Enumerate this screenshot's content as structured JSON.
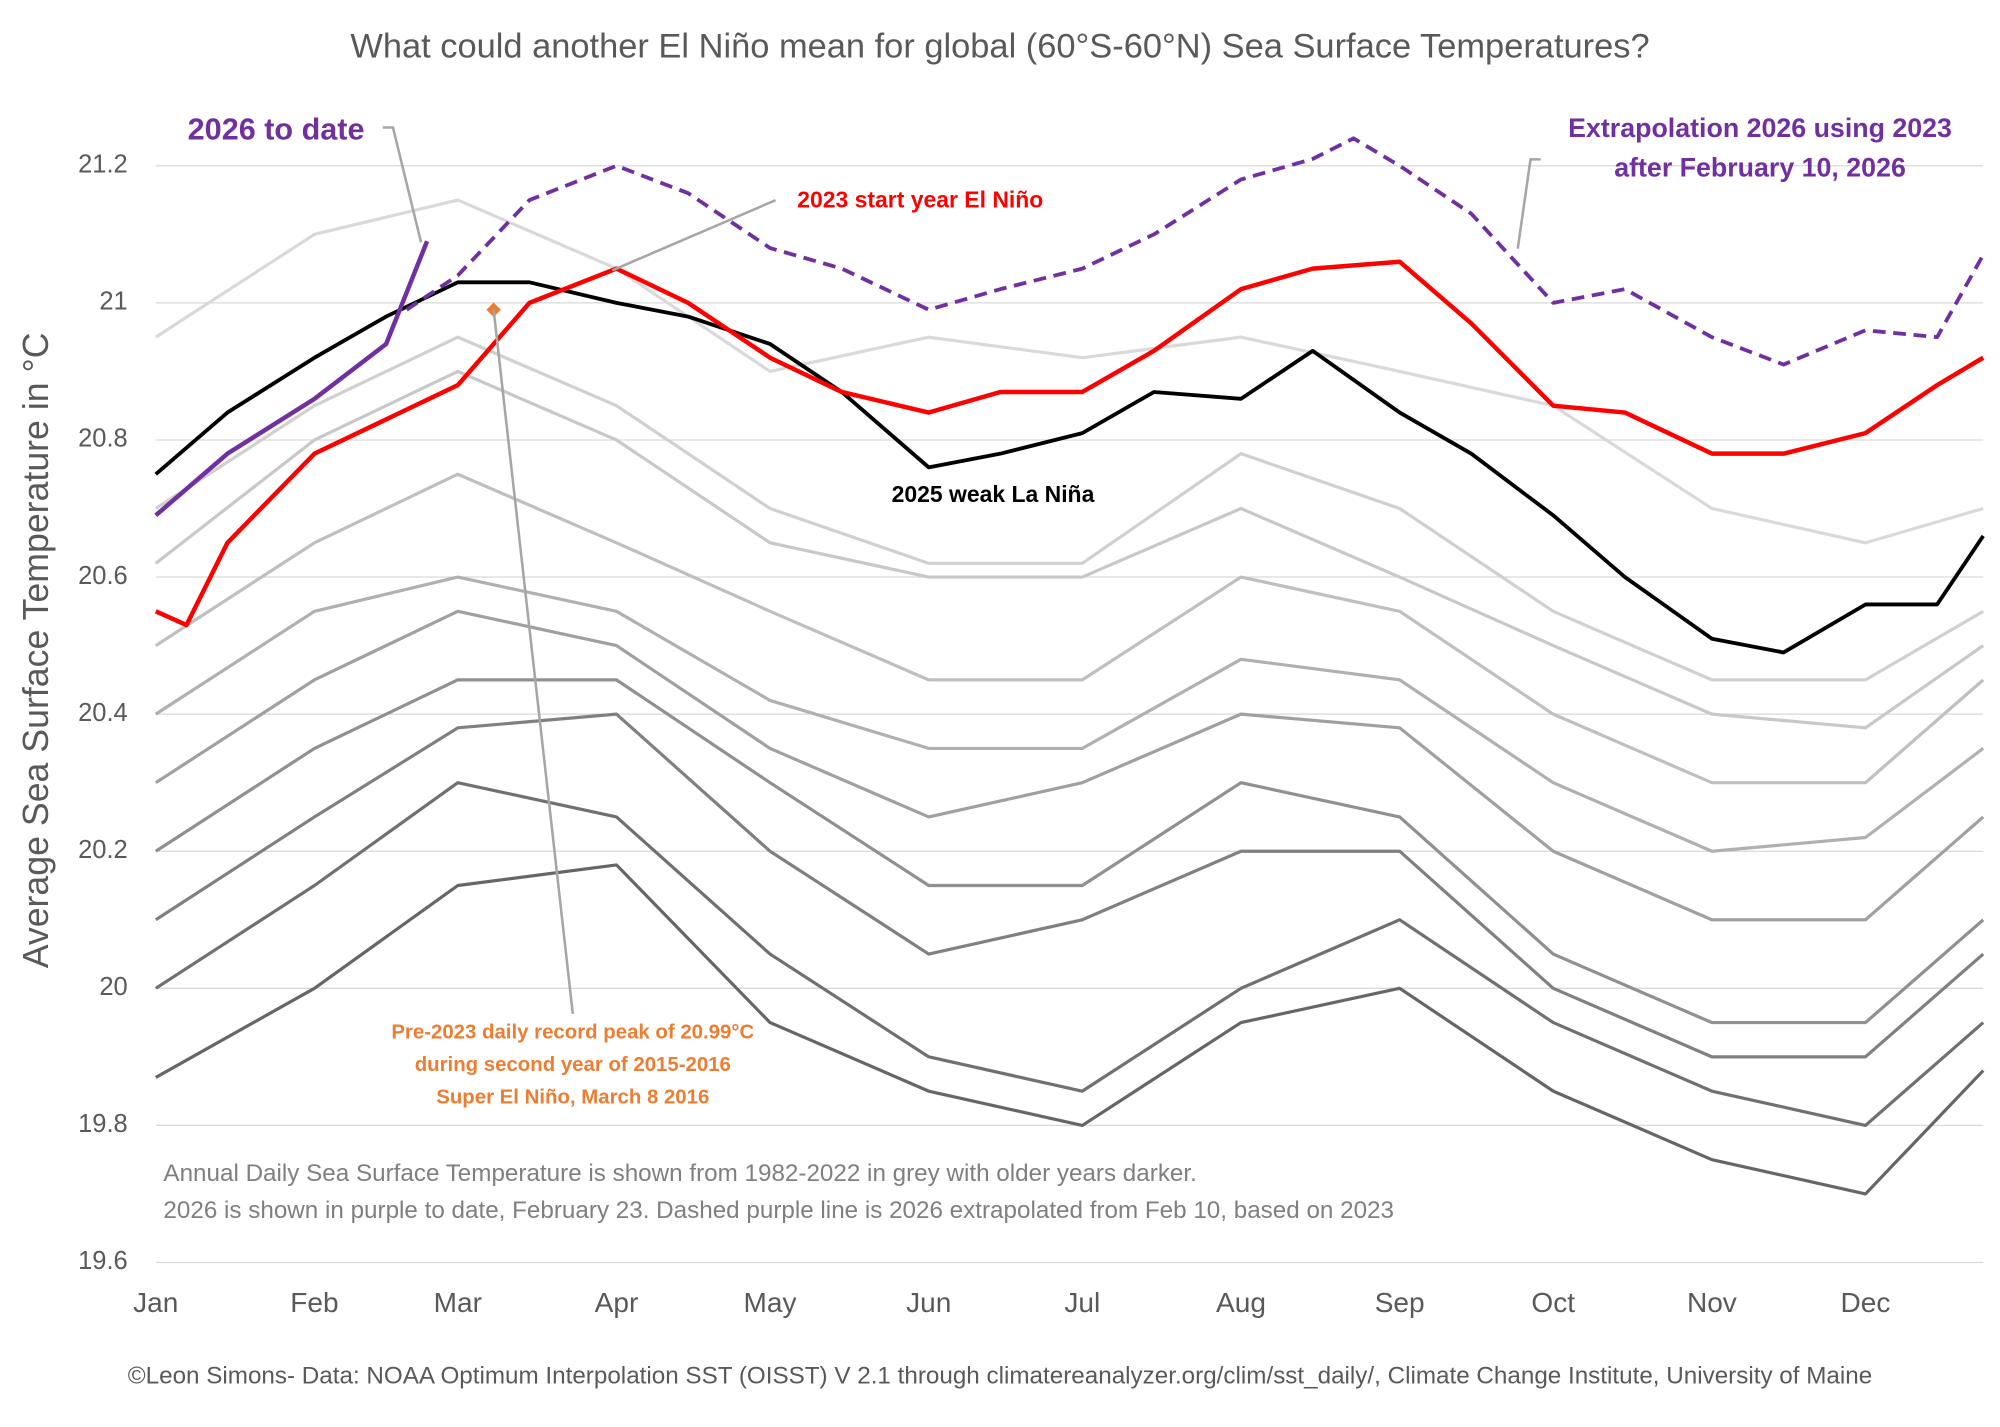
{
  "chart_data": {
    "type": "line",
    "title": "What could another El Niño mean for global (60°S-60°N) Sea Surface Temperatures?",
    "y_label": "Average Sea Surface Temperature in °C",
    "xlim": [
      1,
      358
    ],
    "xticks": [
      {
        "value": 1,
        "label": "Jan"
      },
      {
        "value": 32,
        "label": "Feb"
      },
      {
        "value": 60,
        "label": "Mar"
      },
      {
        "value": 91,
        "label": "Apr"
      },
      {
        "value": 121,
        "label": "May"
      },
      {
        "value": 152,
        "label": "Jun"
      },
      {
        "value": 182,
        "label": "Jul"
      },
      {
        "value": 213,
        "label": "Aug"
      },
      {
        "value": 244,
        "label": "Sep"
      },
      {
        "value": 274,
        "label": "Oct"
      },
      {
        "value": 305,
        "label": "Nov"
      },
      {
        "value": 335,
        "label": "Dec"
      }
    ],
    "ylim": [
      19.6,
      21.2
    ],
    "yticks": [
      19.6,
      19.8,
      20,
      20.2,
      20.4,
      20.6,
      20.8,
      21,
      21.2
    ],
    "grid": true,
    "series": [
      {
        "color": "#d9d9d9",
        "x": [
          1,
          32,
          60,
          91,
          121,
          152,
          182,
          213,
          244,
          274,
          305,
          335,
          358
        ],
        "values": [
          20.95,
          21.1,
          21.15,
          21.05,
          20.9,
          20.95,
          20.92,
          20.95,
          20.9,
          20.85,
          20.7,
          20.65,
          20.7
        ]
      },
      {
        "color": "#d0d0d0",
        "x": [
          1,
          32,
          60,
          91,
          121,
          152,
          182,
          213,
          244,
          274,
          305,
          335,
          358
        ],
        "values": [
          20.7,
          20.85,
          20.95,
          20.85,
          20.7,
          20.62,
          20.62,
          20.78,
          20.7,
          20.55,
          20.45,
          20.45,
          20.55
        ]
      },
      {
        "color": "#c8c8c8",
        "x": [
          1,
          32,
          60,
          91,
          121,
          152,
          182,
          213,
          244,
          274,
          305,
          335,
          358
        ],
        "values": [
          20.62,
          20.8,
          20.9,
          20.8,
          20.65,
          20.6,
          20.6,
          20.7,
          20.6,
          20.5,
          20.4,
          20.38,
          20.5
        ]
      },
      {
        "color": "#bfbfbf",
        "x": [
          1,
          32,
          60,
          91,
          121,
          152,
          182,
          213,
          244,
          274,
          305,
          335,
          358
        ],
        "values": [
          20.5,
          20.65,
          20.75,
          20.65,
          20.55,
          20.45,
          20.45,
          20.6,
          20.55,
          20.4,
          20.3,
          20.3,
          20.45
        ]
      },
      {
        "color": "#b0b0b0",
        "x": [
          1,
          32,
          60,
          91,
          121,
          152,
          182,
          213,
          244,
          274,
          305,
          335,
          358
        ],
        "values": [
          20.4,
          20.55,
          20.6,
          20.55,
          20.42,
          20.35,
          20.35,
          20.48,
          20.45,
          20.3,
          20.2,
          20.22,
          20.35
        ]
      },
      {
        "color": "#a0a0a0",
        "x": [
          1,
          32,
          60,
          91,
          121,
          152,
          182,
          213,
          244,
          274,
          305,
          335,
          358
        ],
        "values": [
          20.3,
          20.45,
          20.55,
          20.5,
          20.35,
          20.25,
          20.3,
          20.4,
          20.38,
          20.2,
          20.1,
          20.1,
          20.25
        ]
      },
      {
        "color": "#909090",
        "x": [
          1,
          32,
          60,
          91,
          121,
          152,
          182,
          213,
          244,
          274,
          305,
          335,
          358
        ],
        "values": [
          20.2,
          20.35,
          20.45,
          20.45,
          20.3,
          20.15,
          20.15,
          20.3,
          20.25,
          20.05,
          19.95,
          19.95,
          20.1
        ]
      },
      {
        "color": "#808080",
        "x": [
          1,
          32,
          60,
          91,
          121,
          152,
          182,
          213,
          244,
          274,
          305,
          335,
          358
        ],
        "values": [
          20.1,
          20.25,
          20.38,
          20.4,
          20.2,
          20.05,
          20.1,
          20.2,
          20.2,
          20.0,
          19.9,
          19.9,
          20.05
        ]
      },
      {
        "color": "#707070",
        "x": [
          1,
          32,
          60,
          91,
          121,
          152,
          182,
          213,
          244,
          274,
          305,
          335,
          358
        ],
        "values": [
          20.0,
          20.15,
          20.3,
          20.25,
          20.05,
          19.9,
          19.85,
          20.0,
          20.1,
          19.95,
          19.85,
          19.8,
          19.95
        ]
      },
      {
        "color": "#666666",
        "x": [
          1,
          32,
          60,
          91,
          121,
          152,
          182,
          213,
          244,
          274,
          305,
          335,
          358
        ],
        "values": [
          19.87,
          20.0,
          20.15,
          20.18,
          19.95,
          19.85,
          19.8,
          19.95,
          20.0,
          19.85,
          19.75,
          19.7,
          19.88
        ]
      },
      {
        "color": "#000000",
        "width": 3,
        "x": [
          1,
          15,
          32,
          46,
          60,
          74,
          91,
          105,
          121,
          135,
          152,
          166,
          182,
          196,
          213,
          227,
          244,
          258,
          274,
          288,
          305,
          319,
          335,
          349,
          358
        ],
        "values": [
          20.75,
          20.84,
          20.92,
          20.98,
          21.03,
          21.03,
          21.0,
          20.98,
          20.94,
          20.87,
          20.76,
          20.78,
          20.81,
          20.87,
          20.86,
          20.93,
          20.84,
          20.78,
          20.69,
          20.6,
          20.51,
          20.49,
          20.56,
          20.56,
          20.66
        ]
      },
      {
        "color": "#ff0000",
        "width": 3.5,
        "x": [
          1,
          7,
          15,
          32,
          46,
          60,
          74,
          91,
          105,
          121,
          135,
          152,
          166,
          182,
          196,
          213,
          227,
          244,
          258,
          274,
          288,
          305,
          319,
          335,
          349,
          358
        ],
        "values": [
          20.55,
          20.53,
          20.65,
          20.78,
          20.83,
          20.88,
          21.0,
          21.05,
          21.0,
          20.92,
          20.87,
          20.84,
          20.87,
          20.87,
          20.93,
          21.02,
          21.05,
          21.06,
          20.97,
          20.85,
          20.84,
          20.78,
          20.78,
          20.81,
          20.88,
          20.92
        ]
      },
      {
        "color": "#7030a0",
        "width": 3,
        "dashed": true,
        "x": [
          50,
          60,
          74,
          91,
          105,
          121,
          135,
          152,
          166,
          182,
          196,
          213,
          227,
          235,
          244,
          258,
          274,
          288,
          305,
          319,
          335,
          349,
          358
        ],
        "values": [
          20.99,
          21.04,
          21.15,
          21.2,
          21.16,
          21.08,
          21.05,
          20.99,
          21.02,
          21.05,
          21.1,
          21.18,
          21.21,
          21.24,
          21.2,
          21.13,
          21.0,
          21.02,
          20.95,
          20.91,
          20.96,
          20.95,
          21.07
        ]
      },
      {
        "color": "#7030a0",
        "width": 3.5,
        "x": [
          1,
          15,
          32,
          46,
          54
        ],
        "values": [
          20.69,
          20.78,
          20.86,
          20.94,
          21.09
        ]
      }
    ],
    "record": {
      "x": 67,
      "value": 20.99,
      "color": "#ed7d31"
    },
    "annotations": [
      {
        "color": "#7030a0",
        "lines": [
          "2026 to date"
        ]
      },
      {
        "color": "#7030a0",
        "lines": [
          "Extrapolation 2026 using 2023",
          "after February 10, 2026"
        ]
      },
      {
        "color": "#ff0000",
        "lines": [
          "2023 start year El Niño"
        ]
      },
      {
        "color": "#000000",
        "lines": [
          "2025 weak La Niña"
        ]
      },
      {
        "color": "#ed7d31",
        "lines": [
          "Pre-2023 daily record peak of 20.99°C",
          "during second year of 2015-2016",
          "Super El Niño, March 8 2016"
        ]
      }
    ],
    "footnote": [
      "Annual Daily Sea Surface Temperature is shown from 1982-2022 in grey with older years darker.",
      "2026 is shown in purple to date,  February 23. Dashed purple line is 2026 extrapolated from Feb 10, based on 2023"
    ],
    "credit": "©Leon Simons- Data: NOAA Optimum Interpolation SST (OISST) V 2.1 through climatereanalyzer.org/clim/sst_daily/, Climate Change Institute, University of Maine"
  }
}
